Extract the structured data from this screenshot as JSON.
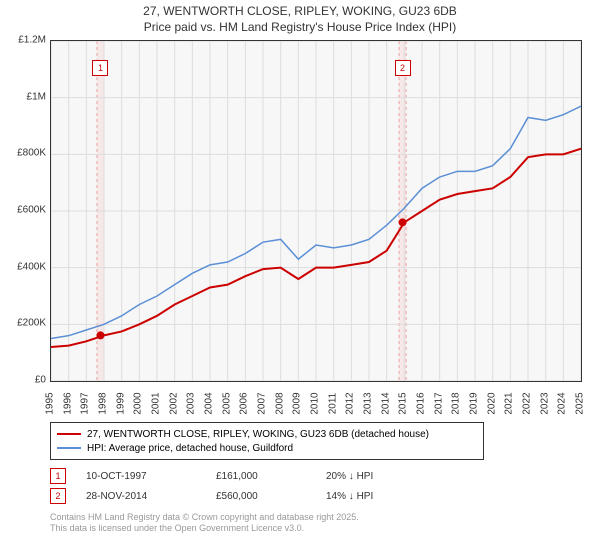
{
  "title_line1": "27, WENTWORTH CLOSE, RIPLEY, WOKING, GU23 6DB",
  "title_line2": "Price paid vs. HM Land Registry's House Price Index (HPI)",
  "chart": {
    "type": "line",
    "background_color": "#f7f7f7",
    "grid_color": "#dddddd",
    "border_color": "#333333",
    "x_years": [
      1995,
      1996,
      1997,
      1998,
      1999,
      2000,
      2001,
      2002,
      2003,
      2004,
      2005,
      2006,
      2007,
      2008,
      2009,
      2010,
      2011,
      2012,
      2013,
      2014,
      2015,
      2016,
      2017,
      2018,
      2019,
      2020,
      2021,
      2022,
      2023,
      2024,
      2025
    ],
    "y_ticks": [
      0,
      200000,
      400000,
      600000,
      800000,
      1000000,
      1200000
    ],
    "y_labels": [
      "£0",
      "£200K",
      "£400K",
      "£600K",
      "£800K",
      "£1M",
      "£1.2M"
    ],
    "ylim": [
      0,
      1200000
    ],
    "series": [
      {
        "name": "property",
        "color": "#cc0000",
        "width": 2,
        "values": [
          120000,
          125000,
          140000,
          161000,
          175000,
          200000,
          230000,
          270000,
          300000,
          330000,
          340000,
          370000,
          395000,
          400000,
          360000,
          400000,
          400000,
          410000,
          420000,
          460000,
          560000,
          600000,
          640000,
          660000,
          670000,
          680000,
          720000,
          790000,
          800000,
          800000,
          820000
        ]
      },
      {
        "name": "hpi",
        "color": "#5b8fd6",
        "width": 1.5,
        "values": [
          150000,
          160000,
          180000,
          200000,
          230000,
          270000,
          300000,
          340000,
          380000,
          410000,
          420000,
          450000,
          490000,
          500000,
          430000,
          480000,
          470000,
          480000,
          500000,
          550000,
          610000,
          680000,
          720000,
          740000,
          740000,
          760000,
          820000,
          930000,
          920000,
          940000,
          970000
        ]
      }
    ],
    "markers": [
      {
        "idx": "1",
        "year": 1997.8,
        "value": 161000,
        "color": "#cc0000"
      },
      {
        "idx": "2",
        "year": 2014.9,
        "value": 560000,
        "color": "#cc0000"
      }
    ],
    "highlight_bands": [
      {
        "from": 1997.6,
        "to": 1998.0,
        "color": "rgba(255,0,0,0.06)",
        "border": "#e9a0a0"
      },
      {
        "from": 2014.7,
        "to": 2015.1,
        "color": "rgba(255,0,0,0.06)",
        "border": "#e9a0a0"
      }
    ]
  },
  "legend": {
    "items": [
      {
        "color": "#cc0000",
        "label": "27, WENTWORTH CLOSE, RIPLEY, WOKING, GU23 6DB (detached house)"
      },
      {
        "color": "#5b8fd6",
        "label": "HPI: Average price, detached house, Guildford"
      }
    ]
  },
  "transactions": [
    {
      "idx": "1",
      "date": "10-OCT-1997",
      "price": "£161,000",
      "pct": "20% ↓ HPI"
    },
    {
      "idx": "2",
      "date": "28-NOV-2014",
      "price": "£560,000",
      "pct": "14% ↓ HPI"
    }
  ],
  "footer_line1": "Contains HM Land Registry data © Crown copyright and database right 2025.",
  "footer_line2": "This data is licensed under the Open Government Licence v3.0."
}
